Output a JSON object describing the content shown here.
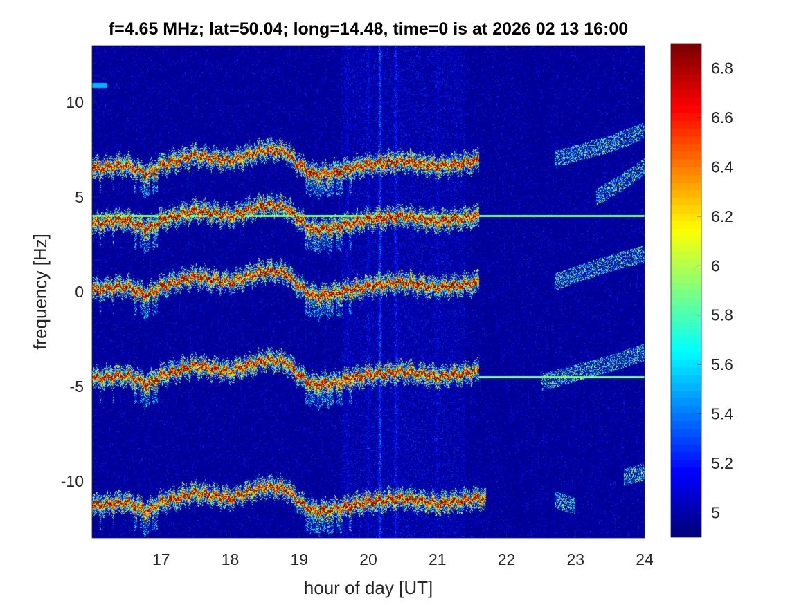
{
  "chart_data": {
    "type": "heatmap",
    "title": "f=4.65 MHz;  lat=50.04; long=14.48, time=0 is at 2026 02 13 16:00",
    "xlabel": "hour of day [UT]",
    "ylabel": "frequency [Hz]",
    "xlim": [
      16.0,
      24.0
    ],
    "ylim": [
      -13.0,
      13.0
    ],
    "xticks": [
      17,
      18,
      19,
      20,
      21,
      22,
      23,
      24
    ],
    "xtick_labels": [
      "17",
      "18",
      "19",
      "20",
      "21",
      "22",
      "23",
      "24"
    ],
    "yticks": [
      10,
      5,
      0,
      -5,
      -10
    ],
    "ytick_labels": [
      "10",
      "5",
      "0",
      "-5",
      "-10"
    ],
    "colorbar": {
      "range": [
        4.9,
        6.9
      ],
      "ticks": [
        6.8,
        6.6,
        6.4,
        6.2,
        6.0,
        5.8,
        5.6,
        5.4,
        5.2,
        5.0
      ],
      "tick_labels": [
        "6.8",
        "6.6",
        "6.4",
        "6.2",
        "6",
        "5.8",
        "5.6",
        "5.4",
        "5.2",
        "5"
      ],
      "colormap": "jet"
    },
    "background_value": 4.95,
    "traces": [
      {
        "base": 6.6,
        "end_hour": 21.6
      },
      {
        "base": 3.7,
        "end_hour": 21.6
      },
      {
        "base": 0.2,
        "end_hour": 21.6
      },
      {
        "base": -4.5,
        "end_hour": 21.6
      },
      {
        "base": -11.2,
        "end_hour": 21.7
      }
    ],
    "trace_deviation": {
      "hours": [
        16.0,
        16.5,
        16.8,
        17.0,
        17.5,
        18.0,
        18.5,
        18.8,
        19.0,
        19.2,
        19.5,
        20.0,
        20.5,
        21.0,
        21.6
      ],
      "values": [
        -0.1,
        0.1,
        -0.4,
        0.1,
        0.6,
        0.3,
        0.9,
        0.8,
        0.1,
        -0.4,
        -0.3,
        0.1,
        0.3,
        0.0,
        0.3
      ]
    },
    "reference_lines": [
      {
        "freq": 4.0,
        "from_hour": 16.0,
        "to_hour": 24.0
      },
      {
        "freq": -4.5,
        "from_hour": 21.6,
        "to_hour": 24.0
      }
    ],
    "late_traces": [
      {
        "hours": [
          22.7,
          23.0,
          23.5,
          24.0
        ],
        "freqs": [
          7.0,
          7.3,
          7.8,
          8.5
        ]
      },
      {
        "hours": [
          23.3,
          23.6,
          24.0
        ],
        "freqs": [
          5.0,
          5.6,
          6.6
        ]
      },
      {
        "hours": [
          22.7,
          23.0,
          23.5,
          24.0
        ],
        "freqs": [
          0.5,
          0.9,
          1.5,
          2.0
        ]
      },
      {
        "hours": [
          22.5,
          23.0,
          23.5,
          24.0
        ],
        "freqs": [
          -4.8,
          -4.3,
          -3.8,
          -3.2
        ]
      },
      {
        "hours": [
          22.7,
          23.0
        ],
        "freqs": [
          -11.0,
          -11.3
        ]
      },
      {
        "hours": [
          23.7,
          24.0
        ],
        "freqs": [
          -9.8,
          -9.5
        ]
      }
    ],
    "vertical_noise_bands": [
      {
        "hour": 20.17,
        "strength": 0.55
      },
      {
        "hour": 20.4,
        "strength": 0.35
      },
      {
        "hour": 20.0,
        "strength": 0.2
      },
      {
        "hour": 19.7,
        "strength": 0.15
      },
      {
        "hour": 21.0,
        "strength": 0.15
      }
    ],
    "annotations": [
      {
        "hour": 16.1,
        "freq": 10.9,
        "value": 5.5
      }
    ]
  }
}
